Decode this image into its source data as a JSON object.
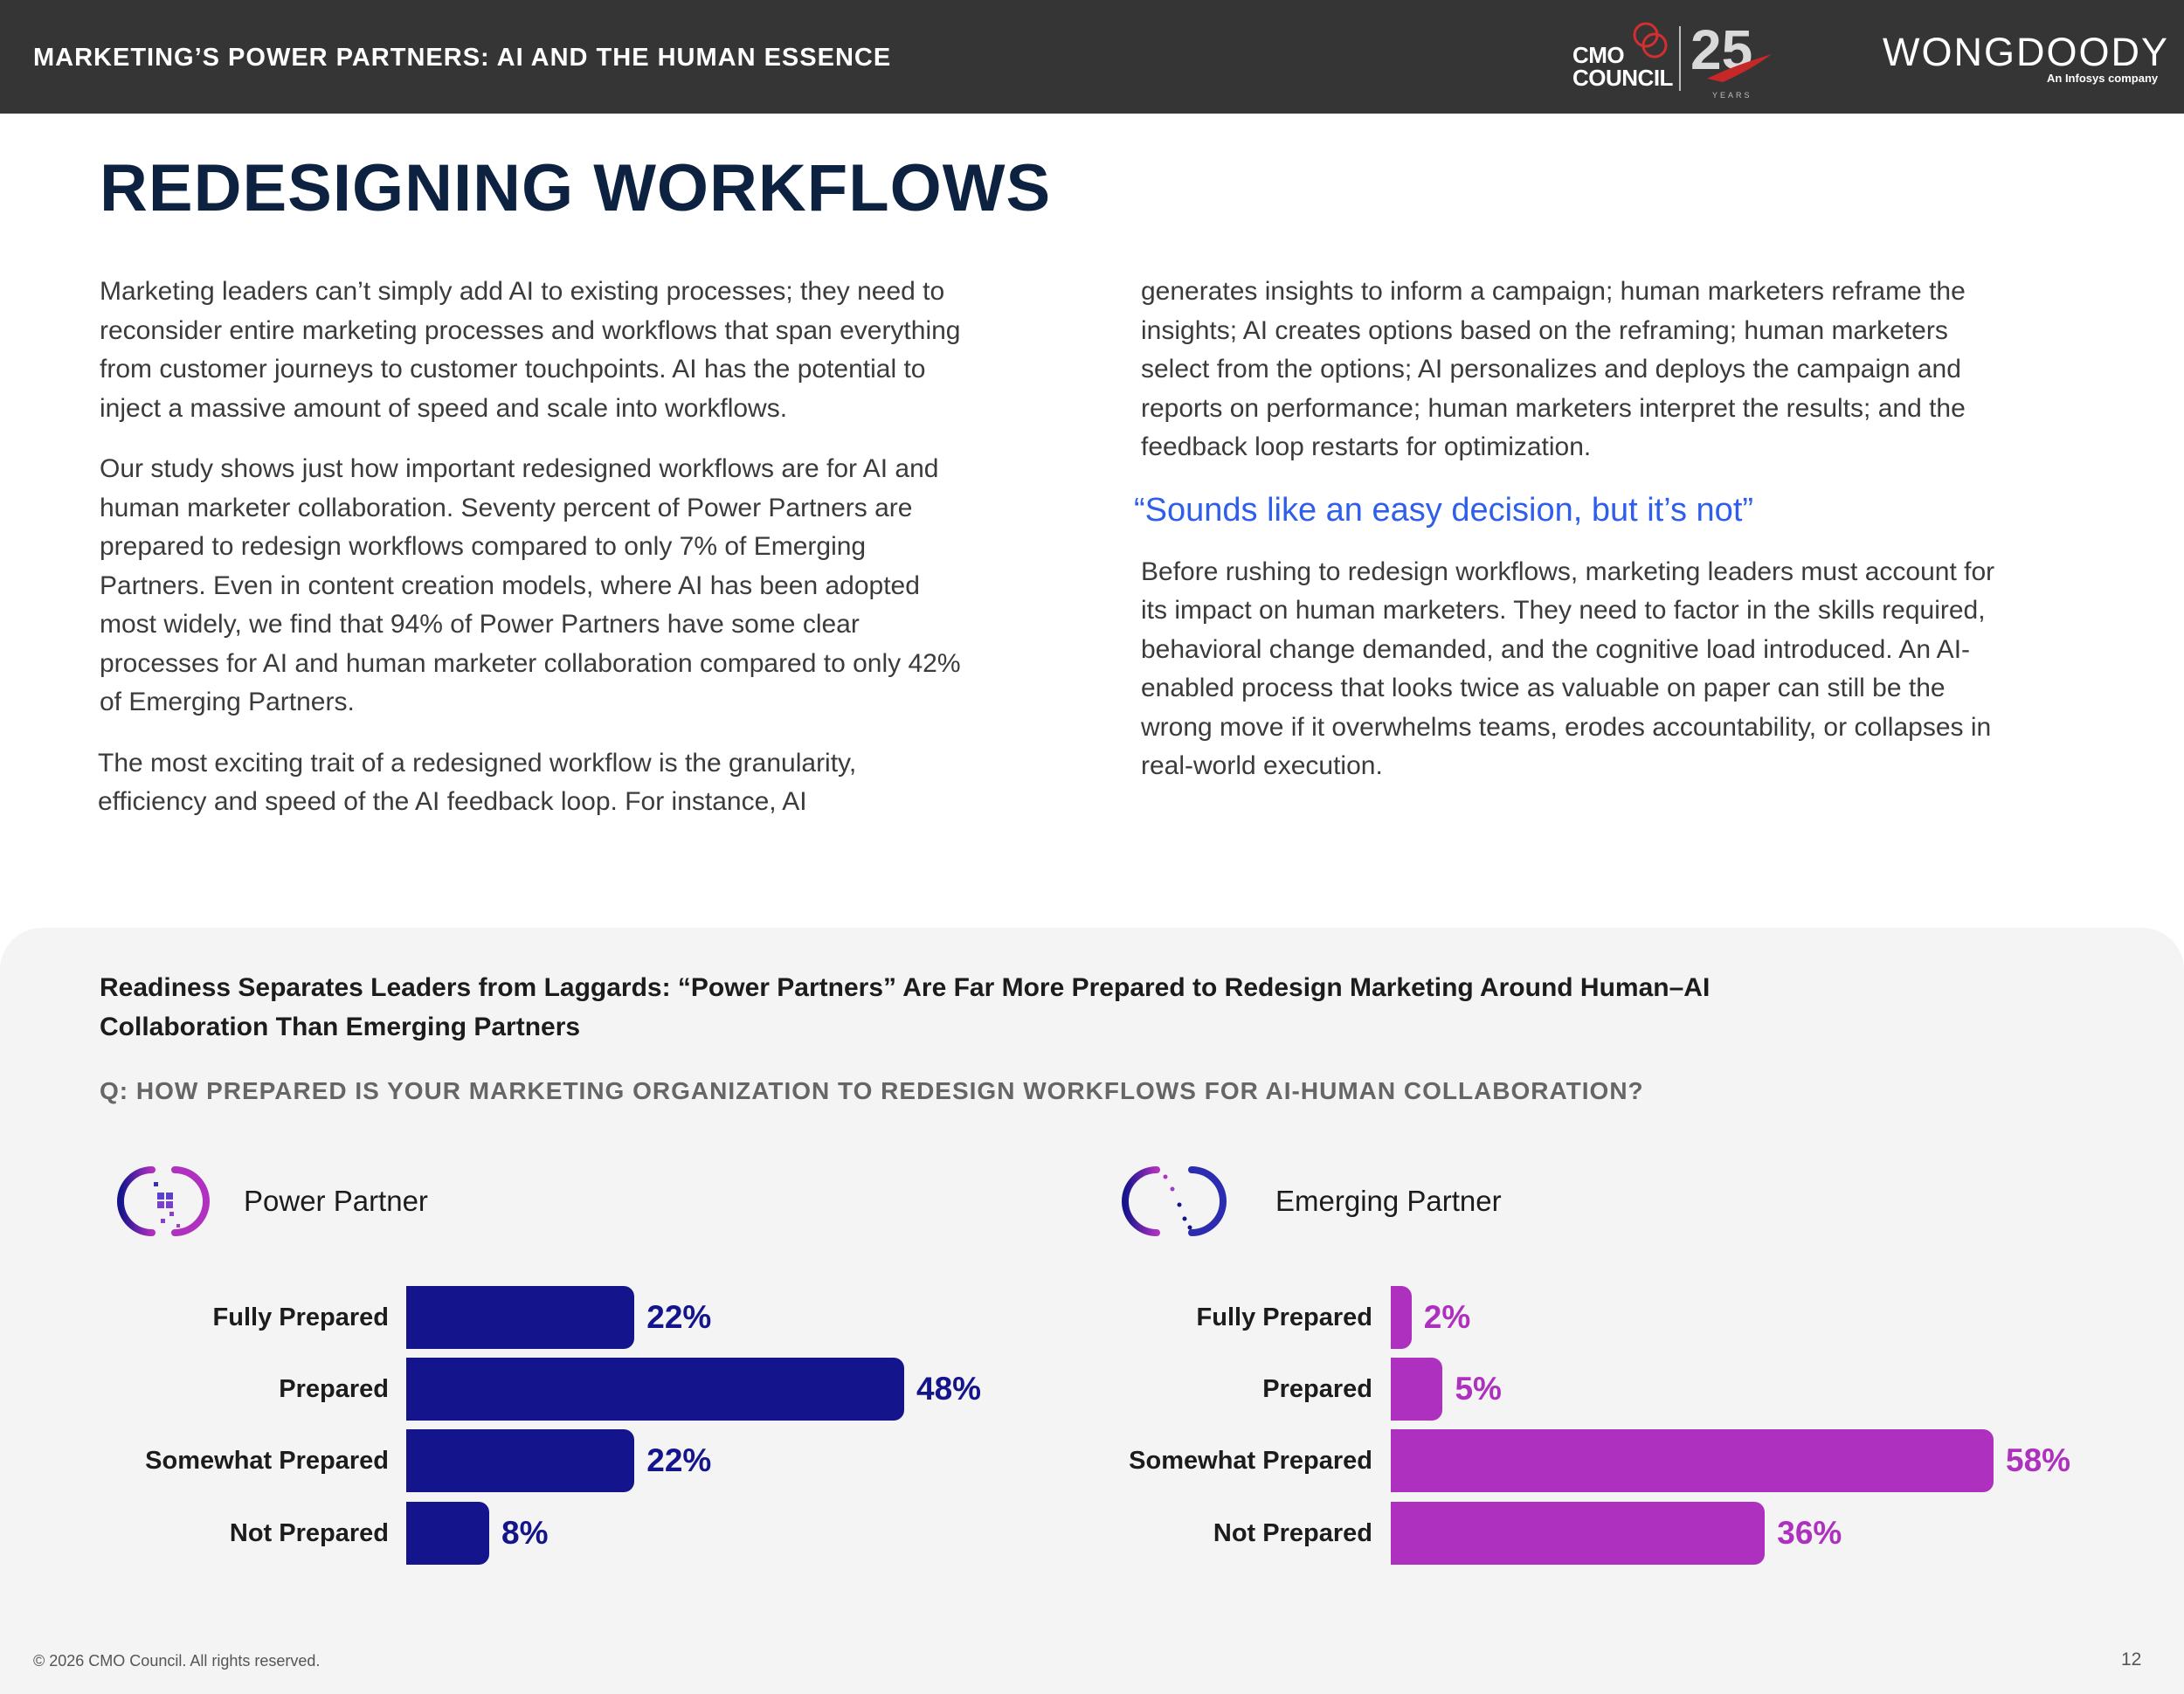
{
  "header": {
    "title": "MARKETING’S POWER PARTNERS: AI AND THE HUMAN ESSENCE",
    "cmo_logo_text": "CMO COUNCIL",
    "cmo_anniversary": "25",
    "cmo_years": "YEARS",
    "wongdoody_logo": "WONGDOODY",
    "wongdoody_sub": "An Infosys company"
  },
  "page_title": "REDESIGNING WORKFLOWS",
  "body": {
    "left_paragraphs": [
      "Marketing leaders can’t simply add AI to existing processes; they need to reconsider entire marketing processes and workflows that span everything from customer journeys to customer touchpoints. AI has the potential to inject a massive amount of speed and scale into workflows.",
      "Our study shows just how important redesigned workflows are for AI and human marketer collaboration. Seventy percent of Power Partners are prepared to redesign workflows compared to only 7% of Emerging Partners. Even in content creation models, where AI has been adopted most widely, we find that 94% of Power Partners have some clear processes for AI and human marketer collaboration compared to only 42% of Emerging Partners.",
      "The most exciting trait of a redesigned workflow is the granularity, efficiency and speed of the AI feedback loop. For instance, AI"
    ],
    "right_paragraph_1": "generates insights to inform a campaign; human marketers reframe the insights; AI creates options based on the reframing; human marketers select from the options; AI personalizes and deploys the campaign and reports on performance; human marketers interpret the results; and the feedback loop restarts for optimization.",
    "pull_quote": "“Sounds like an easy decision, but it’s not”",
    "right_paragraph_2": "Before rushing to redesign workflows, marketing leaders must account for its impact on human marketers. They need to factor in the skills required, behavioral change demanded, and the cognitive load introduced. An AI-enabled process that looks twice as valuable on paper can still be the wrong move if it overwhelms teams, erodes accountability, or collapses in real-world execution."
  },
  "chart_section": {
    "heading": "Readiness Separates Leaders from Laggards: “Power Partners” Are Far More Prepared to Redesign Marketing Around Human–AI Collaboration Than Emerging Partners",
    "question": "Q: HOW PREPARED IS YOUR MARKETING ORGANIZATION TO REDESIGN WORKFLOWS FOR AI-HUMAN COLLABORATION?"
  },
  "chart_data": [
    {
      "type": "bar",
      "orientation": "horizontal",
      "title": "Power Partner",
      "categories": [
        "Fully Prepared",
        "Prepared",
        "Somewhat Prepared",
        "Not Prepared"
      ],
      "values": [
        22,
        48,
        22,
        8
      ],
      "value_labels": [
        "22%",
        "48%",
        "22%",
        "8%"
      ],
      "unit": "%",
      "color": "#14148c",
      "xlim": [
        0,
        100
      ],
      "grid": false
    },
    {
      "type": "bar",
      "orientation": "horizontal",
      "title": "Emerging Partner",
      "categories": [
        "Fully Prepared",
        "Prepared",
        "Somewhat Prepared",
        "Not Prepared"
      ],
      "values": [
        2,
        5,
        58,
        36
      ],
      "value_labels": [
        "2%",
        "5%",
        "58%",
        "36%"
      ],
      "unit": "%",
      "color": "#ae30be",
      "xlim": [
        0,
        100
      ],
      "grid": false
    }
  ],
  "footer": {
    "copyright": "© 2026 CMO Council. All rights reserved.",
    "page_number": "12"
  }
}
